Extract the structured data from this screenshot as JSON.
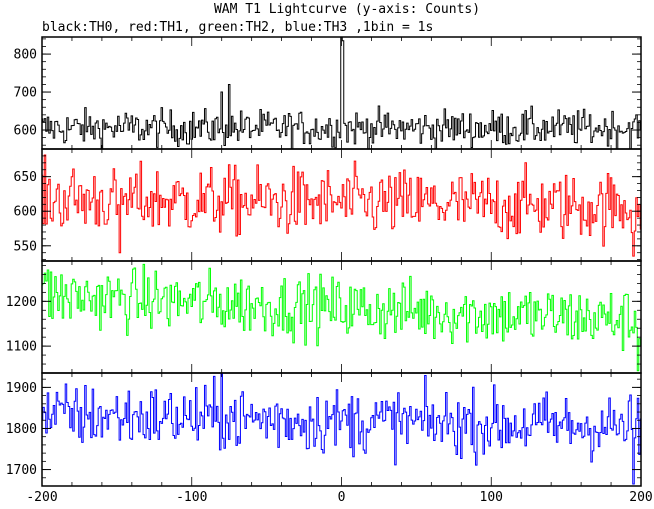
{
  "chart_data": {
    "type": "line",
    "title": "WAM T1 Lightcurve (y-axis: Counts)",
    "subtitle": "black:TH0, red:TH1, green:TH2, blue:TH3 ,1bin = 1s",
    "xlabel": "",
    "ylabel": "",
    "x_ticks": [
      -200,
      -100,
      0,
      100,
      200
    ],
    "x_tick_labels": [
      "-200",
      "-100",
      "0",
      "100",
      "200"
    ],
    "xlim": [
      -200,
      200
    ],
    "grid": false,
    "legend": "none",
    "panels": [
      {
        "series": "TH0",
        "color": "#000000",
        "ylim": [
          550,
          845
        ],
        "y_ticks": [
          600,
          700,
          800
        ],
        "y_tick_labels": [
          "600",
          "700",
          "800"
        ],
        "mean": 605,
        "noise": 24,
        "trend": 0,
        "spikes": [
          {
            "x": -75,
            "y": 720
          },
          {
            "x": -80,
            "y": 700
          },
          {
            "x": 0,
            "y": 845
          },
          {
            "x": 1,
            "y": 835
          }
        ]
      },
      {
        "series": "TH1",
        "color": "#ff0000",
        "ylim": [
          528,
          690
        ],
        "y_ticks": [
          550,
          600,
          650
        ],
        "y_tick_labels": [
          "550",
          "600",
          "650"
        ],
        "mean": 612,
        "noise": 25,
        "trend": -12,
        "spikes": [
          {
            "x": -148,
            "y": 540
          },
          {
            "x": 195,
            "y": 535
          }
        ]
      },
      {
        "series": "TH2",
        "color": "#00ff00",
        "ylim": [
          1040,
          1290
        ],
        "y_ticks": [
          1100,
          1200
        ],
        "y_tick_labels": [
          "1100",
          "1200"
        ],
        "mean": 1185,
        "noise": 35,
        "trend": -55,
        "spikes": [
          {
            "x": -196,
            "y": 1270
          },
          {
            "x": 198,
            "y": 1045
          }
        ]
      },
      {
        "series": "TH3",
        "color": "#0000ff",
        "ylim": [
          1660,
          1935
        ],
        "y_ticks": [
          1700,
          1800,
          1900
        ],
        "y_tick_labels": [
          "1700",
          "1800",
          "1900"
        ],
        "mean": 1818,
        "noise": 40,
        "trend": -30,
        "spikes": [
          {
            "x": -80,
            "y": 1935
          },
          {
            "x": 195,
            "y": 1665
          }
        ]
      }
    ]
  }
}
